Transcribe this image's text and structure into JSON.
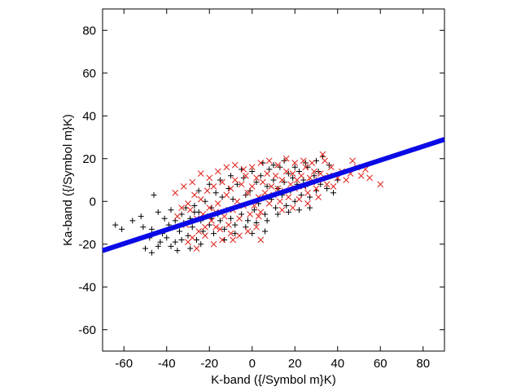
{
  "chart_data": {
    "type": "scatter",
    "title": "",
    "xlabel": "K-band ({/Symbol m}K)",
    "ylabel": "Ka-band ({/Symbol m}K)",
    "xlim": [
      -70,
      90
    ],
    "ylim": [
      -70,
      90
    ],
    "xticks": [
      -60,
      -40,
      -20,
      0,
      20,
      40,
      60,
      80
    ],
    "yticks": [
      -60,
      -40,
      -20,
      0,
      20,
      40,
      60,
      80
    ],
    "xtick_labels": [
      "-60",
      "-40",
      "-20",
      "0",
      "20",
      "40",
      "60",
      "80"
    ],
    "ytick_labels": [
      "-60",
      "-40",
      "-20",
      "0",
      "20",
      "40",
      "60",
      "80"
    ],
    "grid": false,
    "legend": "none",
    "series": [
      {
        "marker": "plus",
        "color": "#000000",
        "points": [
          [
            -64,
            -11
          ],
          [
            -61,
            -13
          ],
          [
            -56,
            -9
          ],
          [
            -52,
            -7
          ],
          [
            -51,
            -12
          ],
          [
            -48,
            -17
          ],
          [
            -47,
            -13
          ],
          [
            -46,
            3
          ],
          [
            -50,
            -22
          ],
          [
            -47,
            -24
          ],
          [
            -44,
            -21
          ],
          [
            -43,
            -19
          ],
          [
            -42,
            -15
          ],
          [
            -41,
            -8
          ],
          [
            -40,
            -17
          ],
          [
            -39,
            -11
          ],
          [
            -38,
            -21
          ],
          [
            -36,
            -19
          ],
          [
            -35,
            -23
          ],
          [
            -34,
            -14
          ],
          [
            -33,
            -6
          ],
          [
            -32,
            -10
          ],
          [
            -31,
            -3
          ],
          [
            -30,
            -16
          ],
          [
            -29,
            -8
          ],
          [
            -28,
            -12
          ],
          [
            -27,
            -2
          ],
          [
            -26,
            -18
          ],
          [
            -25,
            -5
          ],
          [
            -24,
            -9
          ],
          [
            -23,
            -14
          ],
          [
            -22,
            0
          ],
          [
            -21,
            -7
          ],
          [
            -20,
            -11
          ],
          [
            -19,
            -3
          ],
          [
            -18,
            -15
          ],
          [
            -17,
            4
          ],
          [
            -16,
            -6
          ],
          [
            -15,
            -9
          ],
          [
            -14,
            2
          ],
          [
            -13,
            -13
          ],
          [
            -12,
            -4
          ],
          [
            -11,
            6
          ],
          [
            -10,
            -8
          ],
          [
            -9,
            1
          ],
          [
            -8,
            -11
          ],
          [
            -7,
            8
          ],
          [
            -6,
            -2
          ],
          [
            -5,
            -6
          ],
          [
            -4,
            11
          ],
          [
            -3,
            3
          ],
          [
            -2,
            -9
          ],
          [
            -1,
            5
          ],
          [
            0,
            14
          ],
          [
            1,
            -4
          ],
          [
            2,
            9
          ],
          [
            3,
            -1
          ],
          [
            4,
            12
          ],
          [
            5,
            2
          ],
          [
            6,
            -6
          ],
          [
            7,
            7
          ],
          [
            8,
            15
          ],
          [
            9,
            1
          ],
          [
            10,
            10
          ],
          [
            11,
            -3
          ],
          [
            12,
            6
          ],
          [
            13,
            16
          ],
          [
            14,
            3
          ],
          [
            15,
            9
          ],
          [
            16,
            -2
          ],
          [
            17,
            13
          ],
          [
            18,
            5
          ],
          [
            19,
            11
          ],
          [
            20,
            0
          ],
          [
            21,
            8
          ],
          [
            22,
            14
          ],
          [
            23,
            3
          ],
          [
            24,
            10
          ],
          [
            25,
            7
          ],
          [
            26,
            16
          ],
          [
            27,
            2
          ],
          [
            28,
            9
          ],
          [
            29,
            12
          ],
          [
            30,
            5
          ],
          [
            31,
            14
          ],
          [
            32,
            8
          ],
          [
            34,
            11
          ],
          [
            35,
            6
          ],
          [
            36,
            17
          ],
          [
            38,
            4
          ],
          [
            40,
            10
          ],
          [
            -38,
            -4
          ],
          [
            -33,
            -18
          ],
          [
            -29,
            -22
          ],
          [
            -36,
            -9
          ],
          [
            -27,
            -5
          ],
          [
            -44,
            -5
          ],
          [
            -24,
            -20
          ],
          [
            -19,
            -8
          ],
          [
            -13,
            -18
          ],
          [
            -8,
            -15
          ],
          [
            -3,
            -12
          ],
          [
            2,
            -10
          ],
          [
            7,
            -9
          ],
          [
            12,
            -6
          ],
          [
            17,
            -5
          ],
          [
            22,
            -4
          ],
          [
            27,
            -3
          ],
          [
            -10,
            12
          ],
          [
            -5,
            15
          ],
          [
            5,
            18
          ],
          [
            10,
            17
          ],
          [
            15,
            19
          ],
          [
            20,
            16
          ],
          [
            25,
            18
          ],
          [
            30,
            19
          ],
          [
            33,
            21
          ],
          [
            -20,
            8
          ],
          [
            -25,
            5
          ],
          [
            -15,
            10
          ],
          [
            0,
            -15
          ],
          [
            6,
            -14
          ]
        ]
      },
      {
        "marker": "cross",
        "color": "#e0201a",
        "points": [
          [
            -35,
            -7
          ],
          [
            -33,
            -3
          ],
          [
            -31,
            -11
          ],
          [
            -30,
            -1
          ],
          [
            -28,
            -17
          ],
          [
            -27,
            3
          ],
          [
            -26,
            -8
          ],
          [
            -25,
            -14
          ],
          [
            -24,
            1
          ],
          [
            -23,
            -6
          ],
          [
            -22,
            -12
          ],
          [
            -21,
            5
          ],
          [
            -20,
            -3
          ],
          [
            -19,
            -9
          ],
          [
            -18,
            7
          ],
          [
            -17,
            -5
          ],
          [
            -16,
            -1
          ],
          [
            -15,
            -13
          ],
          [
            -14,
            9
          ],
          [
            -13,
            -7
          ],
          [
            -12,
            3
          ],
          [
            -11,
            -11
          ],
          [
            -10,
            6
          ],
          [
            -9,
            -4
          ],
          [
            -8,
            10
          ],
          [
            -7,
            0
          ],
          [
            -6,
            -8
          ],
          [
            -5,
            8
          ],
          [
            -4,
            -2
          ],
          [
            -3,
            12
          ],
          [
            -2,
            4
          ],
          [
            -1,
            -6
          ],
          [
            0,
            7
          ],
          [
            1,
            -2
          ],
          [
            2,
            11
          ],
          [
            3,
            2
          ],
          [
            4,
            -5
          ],
          [
            5,
            9
          ],
          [
            6,
            4
          ],
          [
            7,
            13
          ],
          [
            8,
            -1
          ],
          [
            9,
            7
          ],
          [
            10,
            3
          ],
          [
            11,
            12
          ],
          [
            12,
            6
          ],
          [
            13,
            0
          ],
          [
            14,
            10
          ],
          [
            15,
            5
          ],
          [
            16,
            14
          ],
          [
            17,
            2
          ],
          [
            18,
            8
          ],
          [
            19,
            13
          ],
          [
            20,
            6
          ],
          [
            21,
            10
          ],
          [
            22,
            1
          ],
          [
            23,
            12
          ],
          [
            24,
            7
          ],
          [
            25,
            16
          ],
          [
            26,
            4
          ],
          [
            27,
            11
          ],
          [
            28,
            9
          ],
          [
            29,
            14
          ],
          [
            30,
            6
          ],
          [
            31,
            10
          ],
          [
            32,
            13
          ],
          [
            33,
            22
          ],
          [
            35,
            8
          ],
          [
            36,
            12
          ],
          [
            38,
            7
          ],
          [
            40,
            11
          ],
          [
            42,
            14
          ],
          [
            44,
            10
          ],
          [
            46,
            13
          ],
          [
            47,
            19
          ],
          [
            49,
            16
          ],
          [
            51,
            12
          ],
          [
            53,
            15
          ],
          [
            55,
            11
          ],
          [
            60,
            8
          ],
          [
            -30,
            -19
          ],
          [
            -26,
            -22
          ],
          [
            -22,
            -16
          ],
          [
            -18,
            -20
          ],
          [
            -14,
            -18
          ],
          [
            -10,
            -15
          ],
          [
            -6,
            -16
          ],
          [
            -2,
            -14
          ],
          [
            2,
            -12
          ],
          [
            4,
            -18
          ],
          [
            -36,
            4
          ],
          [
            -32,
            7
          ],
          [
            -28,
            9
          ],
          [
            -24,
            13
          ],
          [
            -20,
            11
          ],
          [
            -16,
            14
          ],
          [
            -12,
            16
          ],
          [
            -8,
            17
          ],
          [
            -4,
            15
          ],
          [
            0,
            16
          ],
          [
            4,
            18
          ],
          [
            8,
            19
          ],
          [
            12,
            17
          ],
          [
            16,
            20
          ],
          [
            20,
            18
          ],
          [
            24,
            19
          ],
          [
            28,
            18
          ],
          [
            34,
            19
          ],
          [
            37,
            16
          ],
          [
            -29,
            -4
          ],
          [
            -17,
            -12
          ],
          [
            -9,
            -18
          ],
          [
            3,
            -7
          ],
          [
            14,
            -4
          ],
          [
            19,
            -3
          ],
          [
            26,
            -1
          ],
          [
            31,
            2
          ]
        ]
      },
      {
        "name": "",
        "marker": "line",
        "color": "#0a0ae6",
        "x": [
          -70,
          90
        ],
        "y": [
          -23,
          29
        ]
      }
    ]
  }
}
